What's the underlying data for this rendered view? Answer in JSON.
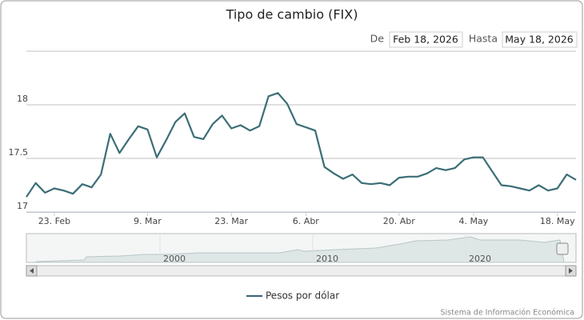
{
  "chart_data": {
    "type": "line",
    "title": "Tipo de cambio (FIX)",
    "range": {
      "from_label": "De",
      "from": "Feb 18, 2026",
      "to_label": "Hasta",
      "to": "May 18, 2026"
    },
    "categories": [
      null,
      null,
      null,
      "23. Feb",
      null,
      null,
      null,
      null,
      null,
      null,
      null,
      null,
      null,
      "9. Mar",
      null,
      null,
      null,
      null,
      null,
      null,
      null,
      null,
      "23. Mar",
      null,
      null,
      null,
      null,
      null,
      null,
      null,
      "6. Abr",
      null,
      null,
      null,
      null,
      null,
      null,
      null,
      null,
      null,
      "20. Abr",
      null,
      null,
      null,
      null,
      null,
      null,
      null,
      "4. May",
      null,
      null,
      null,
      null,
      null,
      null,
      null,
      null,
      "18. May",
      null,
      null
    ],
    "series": [
      {
        "name": "Pesos por dólar",
        "color": "#3b6e76",
        "values": [
          17.14,
          17.27,
          17.18,
          17.22,
          17.2,
          17.17,
          17.26,
          17.23,
          17.35,
          17.73,
          17.55,
          17.68,
          17.8,
          17.77,
          17.51,
          17.67,
          17.84,
          17.92,
          17.7,
          17.68,
          17.82,
          17.9,
          17.78,
          17.81,
          17.76,
          17.8,
          18.08,
          18.11,
          18.01,
          17.82,
          17.79,
          17.76,
          17.42,
          17.36,
          17.31,
          17.35,
          17.27,
          17.26,
          17.27,
          17.25,
          17.32,
          17.33,
          17.33,
          17.36,
          17.41,
          17.39,
          17.41,
          17.49,
          17.51,
          17.51,
          17.38,
          17.25,
          17.24,
          17.22,
          17.2,
          17.25,
          17.2,
          17.22,
          17.35,
          17.3
        ]
      }
    ],
    "ylim": [
      17,
      18.5
    ],
    "yticks": [
      17,
      17.5,
      18
    ],
    "grid": true,
    "navigator_labels": [
      "2000",
      "2010",
      "2020"
    ],
    "credits": "Sistema de Información Económica"
  }
}
